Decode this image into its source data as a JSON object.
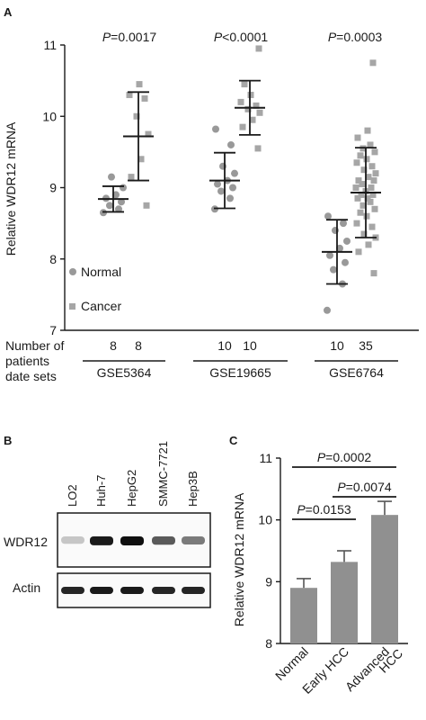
{
  "colors": {
    "normal": "#999999",
    "cancer": "#a6a6a6",
    "bar": "#909090",
    "ink": "#1a1a1a"
  },
  "panel_a": {
    "label": "A",
    "row_label": [
      "Number of",
      "patients",
      "date sets"
    ]
  },
  "panel_b": {
    "label": "B",
    "lanes": [
      "LO2",
      "Huh-7",
      "HepG2",
      "SMMC-7721",
      "Hep3B"
    ],
    "rows": [
      "WDR12",
      "Actin"
    ],
    "wdr12_intensity": [
      0.15,
      0.95,
      1.0,
      0.65,
      0.5
    ],
    "actin_intensity": [
      0.9,
      0.95,
      0.95,
      0.9,
      0.9
    ]
  },
  "panel_c": {
    "label": "C"
  },
  "chart_data": [
    {
      "type": "scatter",
      "ylabel": "Relative WDR12 mRNA",
      "ylim": [
        7,
        11
      ],
      "yticks": [
        "7",
        "8",
        "9",
        "10",
        "11"
      ],
      "legend": [
        "Normal",
        "Cancer"
      ],
      "datasets": [
        {
          "name": "GSE5364",
          "n": [
            "8",
            "8"
          ],
          "p_value": "=0.0017",
          "normal": {
            "values": [
              8.65,
              8.7,
              8.75,
              8.8,
              8.85,
              8.9,
              9.0,
              9.15
            ],
            "mean": 8.84,
            "sd": 0.18
          },
          "cancer": {
            "values": [
              8.75,
              9.15,
              9.4,
              9.75,
              10.0,
              10.25,
              10.3,
              10.45
            ],
            "mean": 9.72,
            "sd": 0.62
          }
        },
        {
          "name": "GSE19665",
          "n": [
            "10",
            "10"
          ],
          "p_value": "<0.0001",
          "normal": {
            "values": [
              8.7,
              8.85,
              8.95,
              9.0,
              9.05,
              9.1,
              9.2,
              9.3,
              9.6,
              9.82
            ],
            "mean": 9.1,
            "sd": 0.39
          },
          "cancer": {
            "values": [
              9.55,
              9.85,
              9.95,
              10.05,
              10.1,
              10.15,
              10.2,
              10.3,
              10.45,
              10.95
            ],
            "mean": 10.12,
            "sd": 0.38
          }
        },
        {
          "name": "GSE6764",
          "n": [
            "10",
            "35"
          ],
          "p_value": "=0.0003",
          "normal": {
            "values": [
              7.28,
              7.65,
              7.85,
              7.95,
              8.05,
              8.15,
              8.25,
              8.4,
              8.5,
              8.6
            ],
            "mean": 8.1,
            "sd": 0.45
          },
          "cancer": {
            "values": [
              7.8,
              8.1,
              8.2,
              8.3,
              8.35,
              8.45,
              8.5,
              8.6,
              8.65,
              8.7,
              8.75,
              8.8,
              8.85,
              8.85,
              8.9,
              8.9,
              8.95,
              9.0,
              9.0,
              9.05,
              9.1,
              9.1,
              9.15,
              9.2,
              9.25,
              9.3,
              9.35,
              9.4,
              9.45,
              9.5,
              9.55,
              9.6,
              9.7,
              9.8,
              10.75
            ],
            "mean": 8.93,
            "sd": 0.63
          }
        }
      ]
    },
    {
      "type": "bar",
      "ylabel": "Relative WDR12 mRNA",
      "ylim": [
        8,
        11
      ],
      "yticks": [
        "8",
        "9",
        "10",
        "11"
      ],
      "categories": [
        [
          "Normal"
        ],
        [
          "Early HCC"
        ],
        [
          "Advanced",
          "HCC"
        ]
      ],
      "values": [
        8.9,
        9.32,
        10.08
      ],
      "errors": [
        0.15,
        0.18,
        0.22
      ],
      "comparisons": [
        {
          "from": 0,
          "to": 2,
          "p_value": "=0.0002"
        },
        {
          "from": 1,
          "to": 2,
          "p_value": "=0.0074"
        },
        {
          "from": 0,
          "to": 1,
          "p_value": "=0.0153"
        }
      ]
    }
  ]
}
